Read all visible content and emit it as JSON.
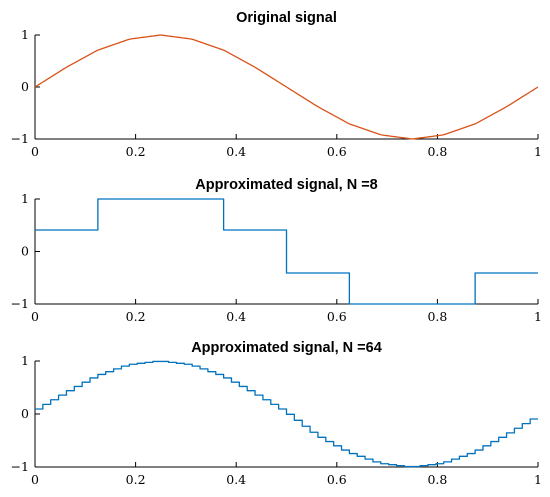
{
  "chart_data": [
    {
      "type": "line",
      "title": "Original signal",
      "xlabel": "",
      "ylabel": "",
      "xlim": [
        0,
        1
      ],
      "ylim": [
        -1,
        1
      ],
      "x_ticks": [
        "0",
        "0.2",
        "0.4",
        "0.6",
        "0.8",
        "1"
      ],
      "y_ticks": [
        "1",
        "0",
        "−1"
      ],
      "grid": false,
      "color": "#d95319",
      "series": [
        {
          "x": [
            0,
            0.0625,
            0.125,
            0.1875,
            0.25,
            0.3125,
            0.375,
            0.4375,
            0.5,
            0.5625,
            0.625,
            0.6875,
            0.75,
            0.8125,
            0.875,
            0.9375,
            1
          ],
          "values": [
            0,
            0.38,
            0.71,
            0.92,
            1.0,
            0.92,
            0.71,
            0.38,
            0,
            -0.38,
            -0.71,
            -0.92,
            -1.0,
            -0.92,
            -0.71,
            -0.38,
            0
          ]
        }
      ]
    },
    {
      "type": "line",
      "title": "Approximated signal, N =8",
      "xlabel": "",
      "ylabel": "",
      "xlim": [
        0,
        1
      ],
      "ylim": [
        -1,
        1
      ],
      "x_ticks": [
        "0",
        "0.2",
        "0.4",
        "0.6",
        "0.8",
        "1"
      ],
      "y_ticks": [
        "1",
        "0",
        "−1"
      ],
      "grid": false,
      "color": "#0072bd",
      "series": [
        {
          "x": [
            0,
            0.125,
            0.125,
            0.25,
            0.25,
            0.375,
            0.375,
            0.5,
            0.5,
            0.625,
            0.625,
            0.75,
            0.75,
            0.875,
            0.875,
            1
          ],
          "values": [
            0.41,
            0.41,
            1.0,
            1.0,
            1.0,
            1.0,
            0.41,
            0.41,
            -0.41,
            -0.41,
            -1.0,
            -1.0,
            -1.0,
            -1.0,
            -0.41,
            -0.41
          ]
        }
      ]
    },
    {
      "type": "line",
      "title": "Approximated signal, N =64",
      "xlabel": "",
      "ylabel": "",
      "xlim": [
        0,
        1
      ],
      "ylim": [
        -1,
        1
      ],
      "x_ticks": [
        "0",
        "0.2",
        "0.4",
        "0.6",
        "0.8",
        "1"
      ],
      "y_ticks": [
        "1",
        "0",
        "−1"
      ],
      "grid": false,
      "color": "#0072bd",
      "series": [
        {
          "step_count": 64,
          "x": [
            0,
            0.0625,
            0.125,
            0.1875,
            0.25,
            0.3125,
            0.375,
            0.4375,
            0.5,
            0.5625,
            0.625,
            0.6875,
            0.75,
            0.8125,
            0.875,
            0.9375,
            1
          ],
          "values": [
            0.05,
            0.4,
            0.72,
            0.93,
            1.0,
            0.93,
            0.72,
            0.4,
            0.05,
            -0.4,
            -0.72,
            -0.93,
            -1.0,
            -0.93,
            -0.72,
            -0.4,
            -0.05
          ]
        }
      ]
    }
  ]
}
